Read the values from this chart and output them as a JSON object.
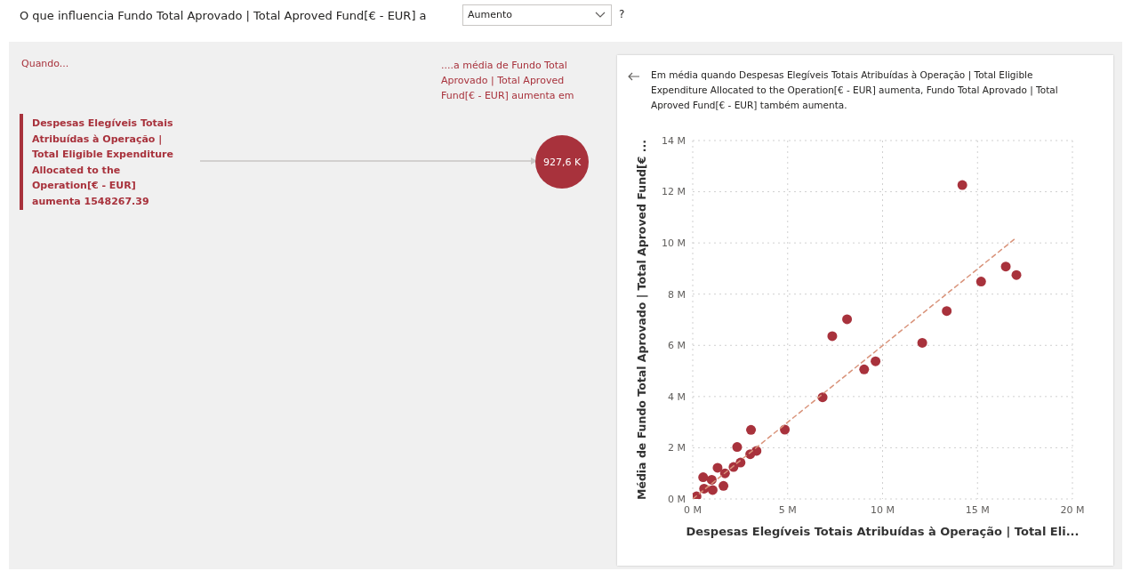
{
  "chart_data": {
    "type": "scatter",
    "title": "O que influencia Fundo Total Aprovado | Total Aproved Fund[€ - EUR] a",
    "subtitle": "Em média quando Despesas Elegíveis Totais Atribuídas à Operação | Total Eligible Expenditure Allocated to the Operation[€ - EUR] aumenta, Fundo Total Aprovado | Total Aproved Fund[€ - EUR] também aumenta.",
    "annotations": [
      "Aumento",
      "?",
      "Quando...",
      "....a média de Fundo Total Aprovado | Total Aproved Fund[€ - EUR] aumenta em",
      "Despesas Elegíveis Totais Atribuídas à Operação | Total Eligible Expenditure Allocated to the Operation[€ - EUR] aumenta 1548267.39",
      "927,6 K"
    ],
    "xlabel": "Despesas Elegíveis Totais Atribuídas à Operação | Total Eli...",
    "ylabel": "Média de Fundo Total Aprovado | Total Aproved Fund[€ ...",
    "series": [
      {
        "type": "scatter",
        "color": "#a8323c",
        "marker": "circle",
        "x": [
          14.2,
          7.35,
          8.13,
          9.03,
          9.63,
          12.09,
          13.38,
          15.19,
          16.49,
          17.05,
          6.84,
          4.85,
          3.07,
          2.34,
          3.36,
          3.03,
          2.52,
          2.15,
          1.31,
          1.62,
          0.2,
          0.6,
          1.0,
          0.55,
          1.05,
          1.7
        ],
        "values": [
          12.26,
          6.36,
          7.02,
          5.06,
          5.38,
          6.1,
          7.34,
          8.49,
          9.08,
          8.75,
          3.97,
          2.71,
          2.7,
          2.03,
          1.88,
          1.75,
          1.42,
          1.25,
          1.22,
          0.51,
          0.1,
          0.4,
          0.75,
          0.85,
          0.35,
          1.0
        ]
      },
      {
        "type": "line",
        "color": "#d9937a",
        "line_style": "dashed",
        "marker": "none",
        "x": [
          0,
          17.05
        ],
        "values": [
          0,
          10.21
        ]
      }
    ],
    "xlim": [
      0,
      20
    ],
    "xticks": [
      {
        "value": 0,
        "label": "0 M"
      },
      {
        "value": 5,
        "label": "5 M"
      },
      {
        "value": 10,
        "label": "10 M"
      },
      {
        "value": 15,
        "label": "15 M"
      },
      {
        "value": 20,
        "label": "20 M"
      }
    ],
    "ylim": [
      0,
      14
    ],
    "yticks": [
      {
        "value": 0,
        "label": "0 M"
      },
      {
        "value": 2,
        "label": "2 M"
      },
      {
        "value": 4,
        "label": "4 M"
      },
      {
        "value": 6,
        "label": "6 M"
      },
      {
        "value": 8,
        "label": "8 M"
      },
      {
        "value": 10,
        "label": "10 M"
      },
      {
        "value": 12,
        "label": "12 M"
      },
      {
        "value": 14,
        "label": "14 M"
      }
    ],
    "grid": true,
    "legend": false
  }
}
